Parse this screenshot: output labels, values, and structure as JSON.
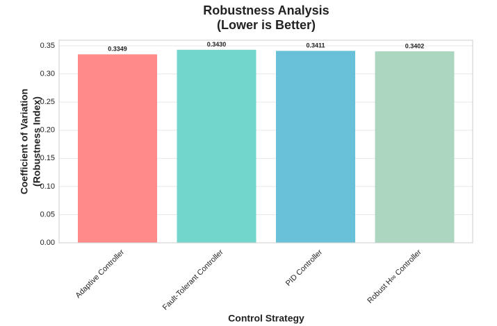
{
  "chart_data": {
    "type": "bar",
    "title": [
      "Robustness Analysis",
      "(Lower is Better)"
    ],
    "x_label": "Control Strategy",
    "y_label": [
      "Coefficient of Variation",
      "(Robustness Index)"
    ],
    "categories": [
      "Adaptive Controller",
      "Fault-Tolerant Controller",
      "PID Controller",
      "Robust H∞ Controller"
    ],
    "values": [
      0.3349,
      0.343,
      0.3411,
      0.3402
    ],
    "value_labels": [
      "0.3349",
      "0.3430",
      "0.3411",
      "0.3402"
    ],
    "colors": [
      "#ff8a8a",
      "#72d6cd",
      "#68c1d9",
      "#acd6c0"
    ],
    "ylim": [
      0,
      0.36
    ],
    "yticks": [
      {
        "value": 0,
        "label": "0.00"
      },
      {
        "value": 0.05,
        "label": "0.05"
      },
      {
        "value": 0.1,
        "label": "0.10"
      },
      {
        "value": 0.15,
        "label": "0.15"
      },
      {
        "value": 0.2,
        "label": "0.20"
      },
      {
        "value": 0.25,
        "label": "0.25"
      },
      {
        "value": 0.3,
        "label": "0.30"
      },
      {
        "value": 0.35,
        "label": "0.35"
      }
    ],
    "grid": true
  }
}
